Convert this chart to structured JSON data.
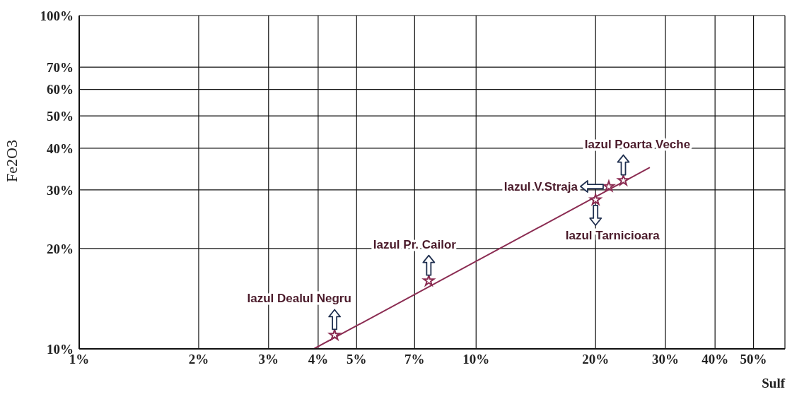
{
  "chart_data": {
    "type": "scatter",
    "xlabel": "Sulf",
    "ylabel": "Fe2O3",
    "log": "xy",
    "grid": true,
    "xlim": [
      1,
      60
    ],
    "xticks": [
      {
        "value": 1,
        "label": "1%"
      },
      {
        "value": 2,
        "label": "2%"
      },
      {
        "value": 3,
        "label": "3%"
      },
      {
        "value": 4,
        "label": "4%"
      },
      {
        "value": 5,
        "label": "5%"
      },
      {
        "value": 7,
        "label": "7%"
      },
      {
        "value": 10,
        "label": "10%"
      },
      {
        "value": 20,
        "label": "20%"
      },
      {
        "value": 30,
        "label": "30%"
      },
      {
        "value": 40,
        "label": "40%"
      },
      {
        "value": 50,
        "label": "50%"
      }
    ],
    "ylim": [
      10,
      100
    ],
    "yticks": [
      {
        "value": 10,
        "label": "10%"
      },
      {
        "value": 20,
        "label": "20%"
      },
      {
        "value": 30,
        "label": "30%"
      },
      {
        "value": 40,
        "label": "40%"
      },
      {
        "value": 50,
        "label": "50%"
      },
      {
        "value": 60,
        "label": "60%"
      },
      {
        "value": 70,
        "label": "70%"
      },
      {
        "value": 100,
        "label": "100%"
      }
    ],
    "series": [
      {
        "marker": "star",
        "color": "#8b2c52",
        "x": [
          4.4,
          7.6,
          20,
          21.6,
          23.5
        ],
        "values": [
          11,
          16,
          28,
          30.7,
          32
        ]
      },
      {
        "type": "line",
        "color": "#8b2c52",
        "x": [
          3.9,
          27.4
        ],
        "values": [
          10,
          35
        ]
      }
    ],
    "annotations": [
      {
        "text": "Iazul Dealul Negru",
        "x": 4.4,
        "y": 11
      },
      {
        "text": "Iazul Pr. Cailor",
        "x": 7.6,
        "y": 16
      },
      {
        "text": "Iazul Tarnicioara",
        "x": 20,
        "y": 28
      },
      {
        "text": "Iazul V.Straja",
        "x": 21.6,
        "y": 30.7
      },
      {
        "text": "Iazul Poarta Veche",
        "x": 23.5,
        "y": 32
      }
    ]
  }
}
